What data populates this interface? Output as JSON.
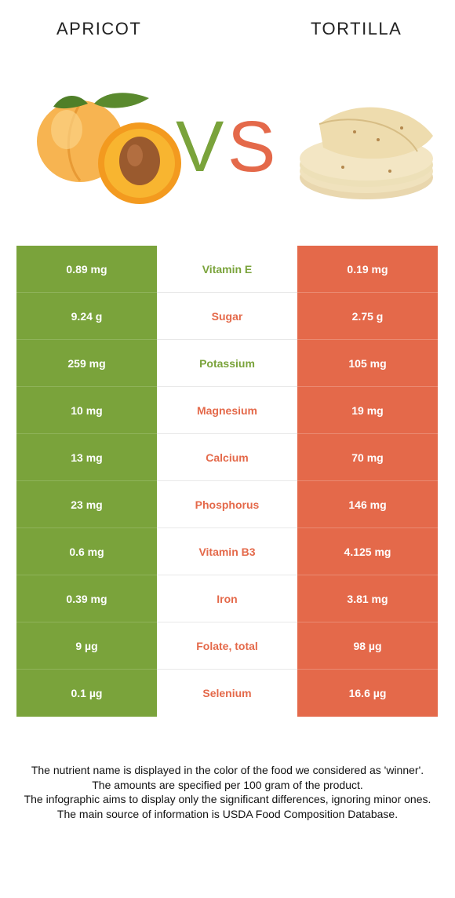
{
  "header": {
    "left_title": "APRICOT",
    "right_title": "TORTILLA",
    "vs_left": "V",
    "vs_right": "S"
  },
  "colors": {
    "winner_left": "#7aa33b",
    "winner_right": "#e4694a"
  },
  "rows": [
    {
      "left": "0.89 mg",
      "name": "Vitamin E",
      "right": "0.19 mg",
      "winner": "left"
    },
    {
      "left": "9.24 g",
      "name": "Sugar",
      "right": "2.75 g",
      "winner": "right"
    },
    {
      "left": "259 mg",
      "name": "Potassium",
      "right": "105 mg",
      "winner": "left"
    },
    {
      "left": "10 mg",
      "name": "Magnesium",
      "right": "19 mg",
      "winner": "right"
    },
    {
      "left": "13 mg",
      "name": "Calcium",
      "right": "70 mg",
      "winner": "right"
    },
    {
      "left": "23 mg",
      "name": "Phosphorus",
      "right": "146 mg",
      "winner": "right"
    },
    {
      "left": "0.6 mg",
      "name": "Vitamin B3",
      "right": "4.125 mg",
      "winner": "right"
    },
    {
      "left": "0.39 mg",
      "name": "Iron",
      "right": "3.81 mg",
      "winner": "right"
    },
    {
      "left": "9 µg",
      "name": "Folate, total",
      "right": "98 µg",
      "winner": "right"
    },
    {
      "left": "0.1 µg",
      "name": "Selenium",
      "right": "16.6 µg",
      "winner": "right"
    }
  ],
  "footer": [
    "The nutrient name is displayed in the color of the food we considered as 'winner'.",
    "The amounts are specified per 100 gram of the product.",
    "The infographic aims to display only the significant differences, ignoring minor ones.",
    "The main source of information is USDA Food Composition Database."
  ]
}
